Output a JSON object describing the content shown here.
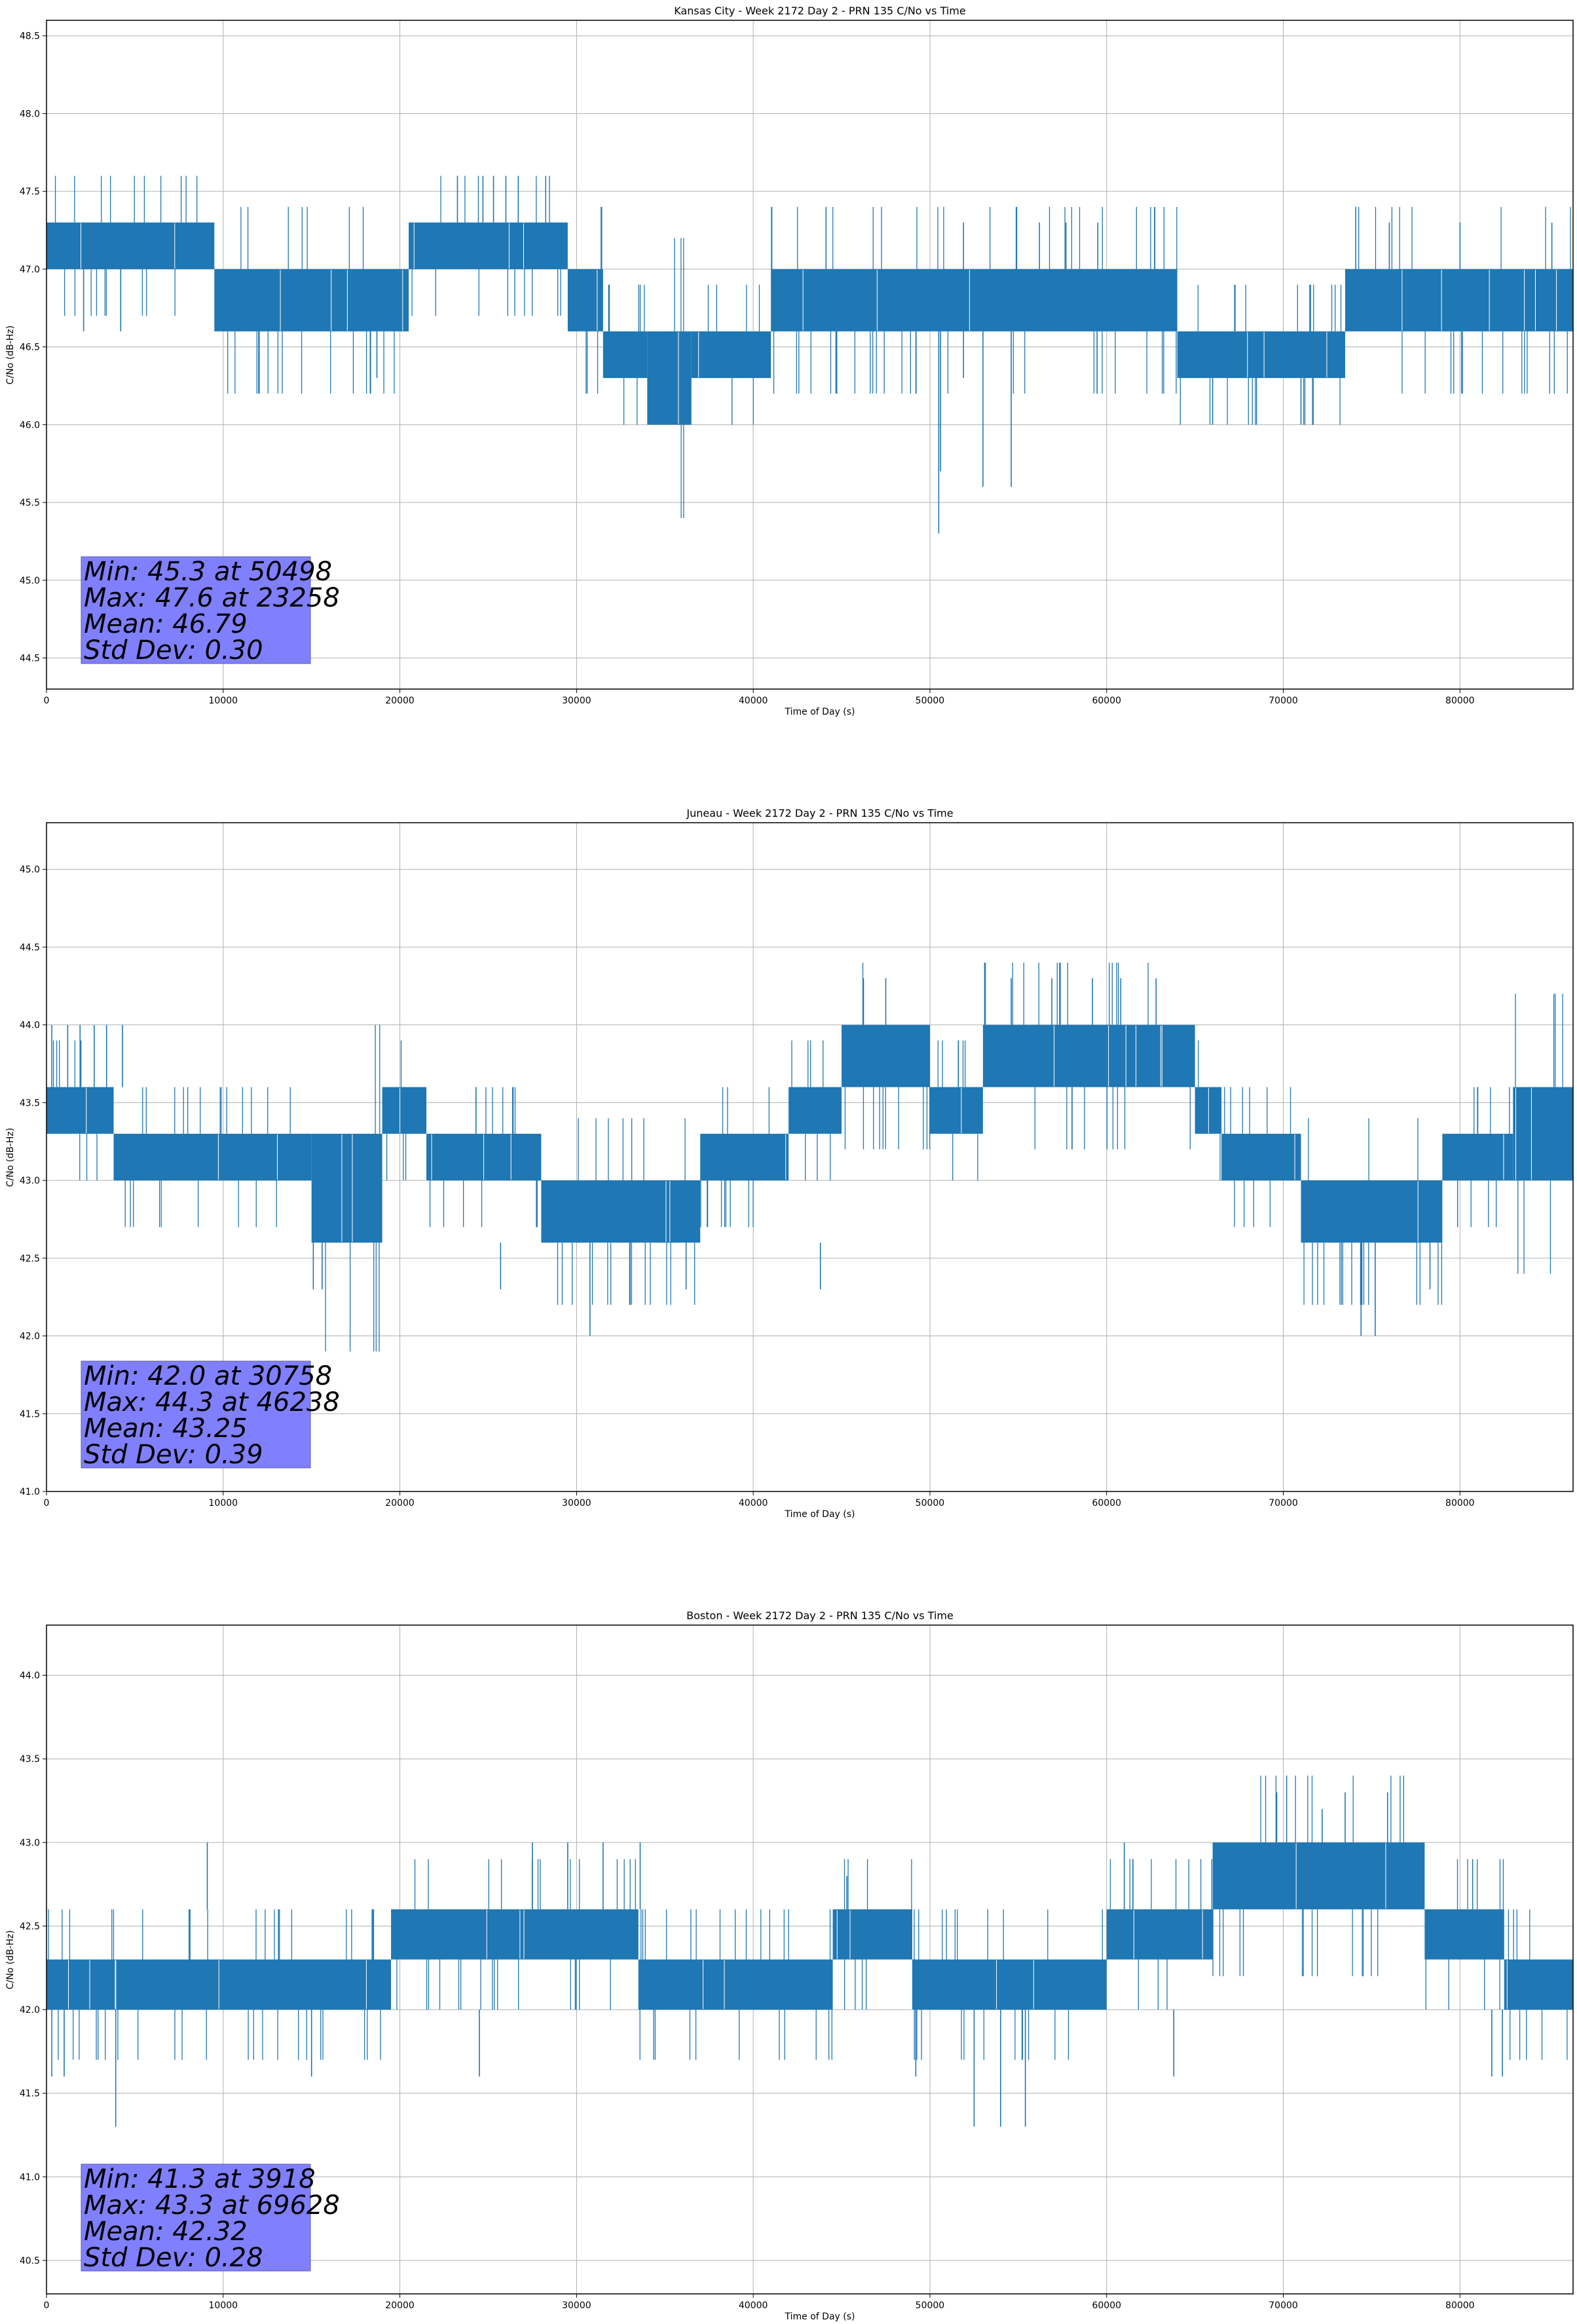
{
  "chart_data": [
    {
      "type": "line",
      "title": "Kansas City - Week 2172 Day 2 - PRN 135 C/No vs Time",
      "xlabel": "Time of Day (s)",
      "ylabel": "C/No (dB-Hz)",
      "xlim": [
        0,
        86400
      ],
      "ylim": [
        44.3,
        48.6
      ],
      "xticks": [
        0,
        10000,
        20000,
        30000,
        40000,
        50000,
        60000,
        70000,
        80000
      ],
      "yticks": [
        44.5,
        45.0,
        45.5,
        46.0,
        46.5,
        47.0,
        47.5,
        48.0,
        48.5
      ],
      "grid": true,
      "line_color": "#1f77b4",
      "stats_box_color": "#8080ff",
      "stats_lines": [
        "Min: 45.3 at 50498",
        "Max: 47.6 at 23258",
        "Mean: 46.79",
        "Std Dev: 0.30"
      ],
      "band_segments": [
        {
          "x0": 0,
          "x1": 9500,
          "lo": 47.0,
          "hi": 47.3
        },
        {
          "x0": 9500,
          "x1": 20500,
          "lo": 46.6,
          "hi": 47.0
        },
        {
          "x0": 20500,
          "x1": 29500,
          "lo": 47.0,
          "hi": 47.3
        },
        {
          "x0": 29500,
          "x1": 31500,
          "lo": 46.6,
          "hi": 47.0
        },
        {
          "x0": 31500,
          "x1": 34000,
          "lo": 46.3,
          "hi": 46.6
        },
        {
          "x0": 34000,
          "x1": 36500,
          "lo": 46.0,
          "hi": 46.6
        },
        {
          "x0": 36500,
          "x1": 41000,
          "lo": 46.3,
          "hi": 46.6
        },
        {
          "x0": 41000,
          "x1": 64000,
          "lo": 46.6,
          "hi": 47.0
        },
        {
          "x0": 64000,
          "x1": 73500,
          "lo": 46.3,
          "hi": 46.6
        },
        {
          "x0": 73500,
          "x1": 86400,
          "lo": 46.6,
          "hi": 47.0
        }
      ],
      "spikes": [
        {
          "x": 2100,
          "lo": 46.6,
          "hi": 47.0
        },
        {
          "x": 4200,
          "lo": 46.6,
          "hi": 47.0
        },
        {
          "x": 18700,
          "lo": 46.3,
          "hi": 46.6
        },
        {
          "x": 23258,
          "lo": 47.3,
          "hi": 47.6
        },
        {
          "x": 24700,
          "lo": 47.3,
          "hi": 47.6
        },
        {
          "x": 25300,
          "lo": 47.3,
          "hi": 47.6
        },
        {
          "x": 26000,
          "lo": 47.3,
          "hi": 47.6
        },
        {
          "x": 26700,
          "lo": 47.3,
          "hi": 47.6
        },
        {
          "x": 50498,
          "lo": 45.3,
          "hi": 46.6
        },
        {
          "x": 50600,
          "lo": 45.7,
          "hi": 46.6
        },
        {
          "x": 51900,
          "lo": 46.3,
          "hi": 47.3
        },
        {
          "x": 53000,
          "lo": 45.6,
          "hi": 46.6
        },
        {
          "x": 54600,
          "lo": 45.6,
          "hi": 46.6
        },
        {
          "x": 56200,
          "lo": 47.0,
          "hi": 47.3
        },
        {
          "x": 57700,
          "lo": 47.0,
          "hi": 47.3
        },
        {
          "x": 59500,
          "lo": 47.0,
          "hi": 47.3
        },
        {
          "x": 66000,
          "lo": 46.0,
          "hi": 46.3
        },
        {
          "x": 71000,
          "lo": 46.0,
          "hi": 46.3
        },
        {
          "x": 76000,
          "lo": 47.0,
          "hi": 47.3
        },
        {
          "x": 80000,
          "lo": 47.0,
          "hi": 47.3
        },
        {
          "x": 85200,
          "lo": 47.0,
          "hi": 47.3
        }
      ]
    },
    {
      "type": "line",
      "title": "Juneau - Week 2172 Day 2 - PRN 135 C/No vs Time",
      "xlabel": "Time of Day (s)",
      "ylabel": "C/No (dB-Hz)",
      "xlim": [
        0,
        86400
      ],
      "ylim": [
        41.0,
        45.3
      ],
      "xticks": [
        0,
        10000,
        20000,
        30000,
        40000,
        50000,
        60000,
        70000,
        80000
      ],
      "yticks": [
        41.0,
        41.5,
        42.0,
        42.5,
        43.0,
        43.5,
        44.0,
        44.5,
        45.0
      ],
      "grid": true,
      "line_color": "#1f77b4",
      "stats_box_color": "#8080ff",
      "stats_lines": [
        "Min: 42.0 at 30758",
        "Max: 44.3 at 46238",
        "Mean: 43.25",
        "Std Dev: 0.39"
      ],
      "band_segments": [
        {
          "x0": 0,
          "x1": 3800,
          "lo": 43.3,
          "hi": 43.6
        },
        {
          "x0": 3800,
          "x1": 15000,
          "lo": 43.0,
          "hi": 43.3
        },
        {
          "x0": 15000,
          "x1": 19000,
          "lo": 42.6,
          "hi": 43.3
        },
        {
          "x0": 19000,
          "x1": 21500,
          "lo": 43.3,
          "hi": 43.6
        },
        {
          "x0": 21500,
          "x1": 28000,
          "lo": 43.0,
          "hi": 43.3
        },
        {
          "x0": 28000,
          "x1": 37000,
          "lo": 42.6,
          "hi": 43.0
        },
        {
          "x0": 37000,
          "x1": 42000,
          "lo": 43.0,
          "hi": 43.3
        },
        {
          "x0": 42000,
          "x1": 45000,
          "lo": 43.3,
          "hi": 43.6
        },
        {
          "x0": 45000,
          "x1": 50000,
          "lo": 43.6,
          "hi": 44.0
        },
        {
          "x0": 50000,
          "x1": 53000,
          "lo": 43.3,
          "hi": 43.6
        },
        {
          "x0": 53000,
          "x1": 65000,
          "lo": 43.6,
          "hi": 44.0
        },
        {
          "x0": 65000,
          "x1": 66500,
          "lo": 43.3,
          "hi": 43.6
        },
        {
          "x0": 66500,
          "x1": 71000,
          "lo": 43.0,
          "hi": 43.3
        },
        {
          "x0": 71000,
          "x1": 79000,
          "lo": 42.6,
          "hi": 43.0
        },
        {
          "x0": 79000,
          "x1": 83000,
          "lo": 43.0,
          "hi": 43.3
        },
        {
          "x0": 83000,
          "x1": 86400,
          "lo": 43.0,
          "hi": 43.6
        }
      ],
      "spikes": [
        {
          "x": 300,
          "lo": 43.6,
          "hi": 44.0
        },
        {
          "x": 1200,
          "lo": 43.6,
          "hi": 44.0
        },
        {
          "x": 1900,
          "lo": 43.6,
          "hi": 44.0
        },
        {
          "x": 2700,
          "lo": 43.6,
          "hi": 44.0
        },
        {
          "x": 3400,
          "lo": 43.6,
          "hi": 44.0
        },
        {
          "x": 4300,
          "lo": 43.6,
          "hi": 44.0
        },
        {
          "x": 15100,
          "lo": 42.3,
          "hi": 42.6
        },
        {
          "x": 15600,
          "lo": 42.3,
          "hi": 42.6
        },
        {
          "x": 25700,
          "lo": 42.3,
          "hi": 42.6
        },
        {
          "x": 30758,
          "lo": 42.0,
          "hi": 42.6
        },
        {
          "x": 36200,
          "lo": 42.3,
          "hi": 42.6
        },
        {
          "x": 43800,
          "lo": 42.3,
          "hi": 42.6
        },
        {
          "x": 46238,
          "lo": 44.0,
          "hi": 44.3
        },
        {
          "x": 47500,
          "lo": 44.0,
          "hi": 44.3
        },
        {
          "x": 54600,
          "lo": 44.0,
          "hi": 44.3
        },
        {
          "x": 56900,
          "lo": 44.0,
          "hi": 44.3
        },
        {
          "x": 59200,
          "lo": 44.0,
          "hi": 44.3
        },
        {
          "x": 60800,
          "lo": 44.0,
          "hi": 44.3
        },
        {
          "x": 62800,
          "lo": 44.0,
          "hi": 44.3
        },
        {
          "x": 74400,
          "lo": 42.0,
          "hi": 42.6
        },
        {
          "x": 75200,
          "lo": 42.0,
          "hi": 42.6
        },
        {
          "x": 78300,
          "lo": 42.3,
          "hi": 42.6
        }
      ]
    },
    {
      "type": "line",
      "title": "Boston - Week 2172 Day 2 - PRN 135 C/No vs Time",
      "xlabel": "Time of Day (s)",
      "ylabel": "C/No (dB-Hz)",
      "xlim": [
        0,
        86400
      ],
      "ylim": [
        40.3,
        44.3
      ],
      "xticks": [
        0,
        10000,
        20000,
        30000,
        40000,
        50000,
        60000,
        70000,
        80000
      ],
      "yticks": [
        40.5,
        41.0,
        41.5,
        42.0,
        42.5,
        43.0,
        43.5,
        44.0
      ],
      "grid": true,
      "line_color": "#1f77b4",
      "stats_box_color": "#8080ff",
      "stats_lines": [
        "Min: 41.3 at 3918",
        "Max: 43.3 at 69628",
        "Mean: 42.32",
        "Std Dev: 0.28"
      ],
      "band_segments": [
        {
          "x0": 0,
          "x1": 19500,
          "lo": 42.0,
          "hi": 42.3
        },
        {
          "x0": 19500,
          "x1": 27000,
          "lo": 42.3,
          "hi": 42.6
        },
        {
          "x0": 27000,
          "x1": 33500,
          "lo": 42.3,
          "hi": 42.6
        },
        {
          "x0": 33500,
          "x1": 44500,
          "lo": 42.0,
          "hi": 42.3
        },
        {
          "x0": 44500,
          "x1": 49000,
          "lo": 42.3,
          "hi": 42.6
        },
        {
          "x0": 49000,
          "x1": 60000,
          "lo": 42.0,
          "hi": 42.3
        },
        {
          "x0": 60000,
          "x1": 66000,
          "lo": 42.3,
          "hi": 42.6
        },
        {
          "x0": 66000,
          "x1": 78000,
          "lo": 42.6,
          "hi": 43.0
        },
        {
          "x0": 78000,
          "x1": 82500,
          "lo": 42.3,
          "hi": 42.6
        },
        {
          "x0": 82500,
          "x1": 86400,
          "lo": 42.0,
          "hi": 42.3
        }
      ],
      "spikes": [
        {
          "x": 300,
          "lo": 41.6,
          "hi": 42.0
        },
        {
          "x": 1000,
          "lo": 41.6,
          "hi": 42.0
        },
        {
          "x": 3918,
          "lo": 41.3,
          "hi": 42.0
        },
        {
          "x": 9100,
          "lo": 42.6,
          "hi": 43.0
        },
        {
          "x": 15000,
          "lo": 41.6,
          "hi": 42.0
        },
        {
          "x": 24500,
          "lo": 41.6,
          "hi": 42.0
        },
        {
          "x": 27500,
          "lo": 42.6,
          "hi": 43.0
        },
        {
          "x": 29500,
          "lo": 42.6,
          "hi": 43.0
        },
        {
          "x": 31500,
          "lo": 42.6,
          "hi": 43.0
        },
        {
          "x": 33600,
          "lo": 42.6,
          "hi": 43.0
        },
        {
          "x": 45300,
          "lo": 42.6,
          "hi": 42.8
        },
        {
          "x": 49200,
          "lo": 41.6,
          "hi": 42.0
        },
        {
          "x": 52500,
          "lo": 41.3,
          "hi": 42.0
        },
        {
          "x": 54000,
          "lo": 41.3,
          "hi": 42.0
        },
        {
          "x": 55400,
          "lo": 41.3,
          "hi": 42.0
        },
        {
          "x": 61000,
          "lo": 42.6,
          "hi": 43.0
        },
        {
          "x": 63800,
          "lo": 41.6,
          "hi": 42.0
        },
        {
          "x": 69628,
          "lo": 43.0,
          "hi": 43.3
        },
        {
          "x": 72200,
          "lo": 43.0,
          "hi": 43.2
        },
        {
          "x": 73500,
          "lo": 43.0,
          "hi": 43.3
        },
        {
          "x": 75900,
          "lo": 43.0,
          "hi": 43.3
        },
        {
          "x": 81800,
          "lo": 41.6,
          "hi": 42.0
        },
        {
          "x": 82400,
          "lo": 41.6,
          "hi": 42.0
        }
      ]
    }
  ]
}
